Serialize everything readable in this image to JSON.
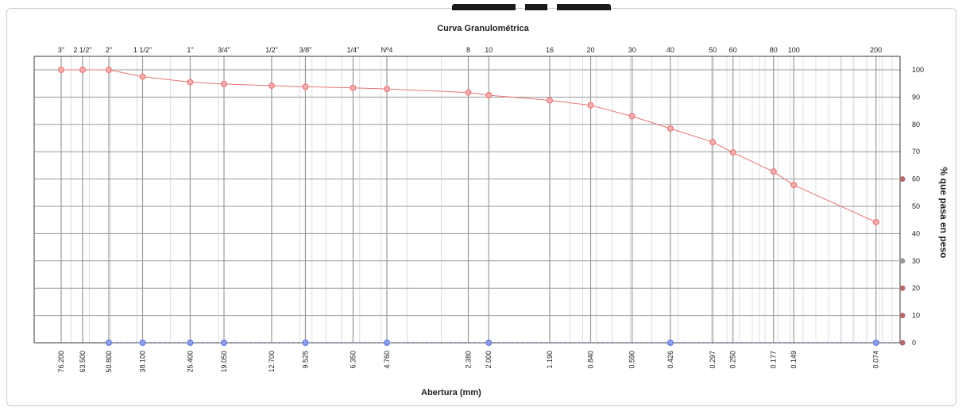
{
  "chart_data": {
    "type": "line",
    "title": "Curva Granulométrica",
    "xlabel": "Abertura (mm)",
    "ylabel": "% que pasa en peso",
    "x_scale": "log",
    "x_direction": "descending",
    "ylim": [
      0,
      100
    ],
    "y_ticks": [
      0,
      10,
      20,
      30,
      40,
      50,
      60,
      70,
      80,
      90,
      100
    ],
    "grid": true,
    "sieves": [
      {
        "name": "3\"",
        "opening": "76.200",
        "value": 76.2
      },
      {
        "name": "2 1/2\"",
        "opening": "63.500",
        "value": 63.5
      },
      {
        "name": "2\"",
        "opening": "50.800",
        "value": 50.8
      },
      {
        "name": "1 1/2\"",
        "opening": "38.100",
        "value": 38.1
      },
      {
        "name": "1\"",
        "opening": "25.400",
        "value": 25.4
      },
      {
        "name": "3/4\"",
        "opening": "19.050",
        "value": 19.05
      },
      {
        "name": "1/2\"",
        "opening": "12.700",
        "value": 12.7
      },
      {
        "name": "3/8\"",
        "opening": "9.525",
        "value": 9.525
      },
      {
        "name": "1/4\"",
        "opening": "6.350",
        "value": 6.35
      },
      {
        "name": "Nº4",
        "opening": "4.760",
        "value": 4.76
      },
      {
        "name": "8",
        "opening": "2.380",
        "value": 2.38
      },
      {
        "name": "10",
        "opening": "2.000",
        "value": 2.0
      },
      {
        "name": "16",
        "opening": "1.190",
        "value": 1.19
      },
      {
        "name": "20",
        "opening": "0.840",
        "value": 0.84
      },
      {
        "name": "30",
        "opening": "0.590",
        "value": 0.59
      },
      {
        "name": "40",
        "opening": "0.426",
        "value": 0.426
      },
      {
        "name": "50",
        "opening": "0.297",
        "value": 0.297
      },
      {
        "name": "60",
        "opening": "0.250",
        "value": 0.25
      },
      {
        "name": "80",
        "opening": "0.177",
        "value": 0.177
      },
      {
        "name": "100",
        "opening": "0.149",
        "value": 0.149
      },
      {
        "name": "200",
        "opening": "0.074",
        "value": 0.074
      }
    ],
    "series": [
      {
        "color": "#e87575",
        "x": [
          76.2,
          63.5,
          50.8,
          38.1,
          25.4,
          19.05,
          12.7,
          9.525,
          6.35,
          4.76,
          2.38,
          2.0,
          1.19,
          0.84,
          0.59,
          0.426,
          0.297,
          0.25,
          0.177,
          0.149,
          0.074
        ],
        "y": [
          100,
          100,
          100,
          97.5,
          95.5,
          94.8,
          94.2,
          93.8,
          93.4,
          93.0,
          91.7,
          90.7,
          88.8,
          87.0,
          83.0,
          78.5,
          73.5,
          69.7,
          62.7,
          57.8,
          44.2
        ]
      },
      {
        "color": "#6677dd",
        "x": [
          50.8,
          38.1,
          25.4,
          19.05,
          9.525,
          4.76,
          2.0,
          0.426,
          0.074
        ],
        "y": [
          0,
          0,
          0,
          0,
          0,
          0,
          0,
          0,
          0
        ]
      }
    ]
  },
  "colors": {
    "grid_major": "#9a9a9a",
    "grid_minor": "#cfcfd6",
    "axis": "#3a3a3a",
    "right_marker": "#b06a6a",
    "right_marker_gray": "#9a9a9a"
  }
}
